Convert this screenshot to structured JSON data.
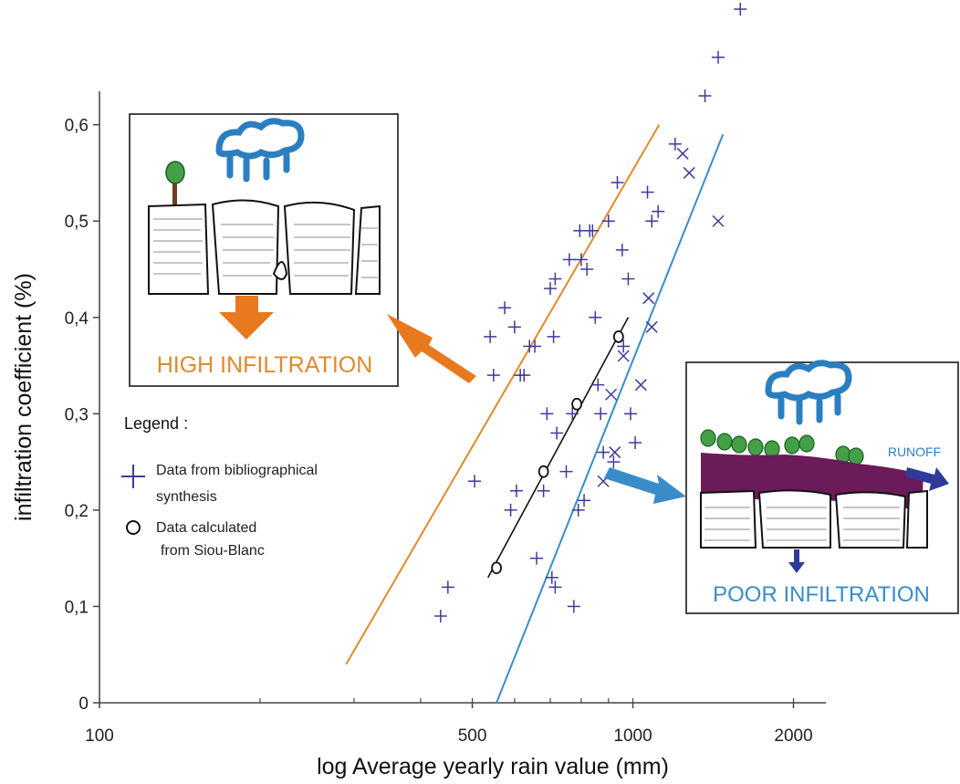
{
  "chart_data": {
    "type": "scatter",
    "xlabel": "log Average yearly rain value (mm)",
    "ylabel": "infiltration coefficient (%)",
    "xscale": "log",
    "xlim": [
      100,
      2300
    ],
    "ylim": [
      0,
      0.72
    ],
    "x_ticks": [
      100,
      500,
      1000,
      2000
    ],
    "x_tick_labels": [
      "100",
      "500",
      "1000",
      "2000"
    ],
    "y_ticks": [
      0,
      0.1,
      0.2,
      0.3,
      0.4,
      0.5,
      0.6
    ],
    "y_tick_labels": [
      "0",
      "0,1",
      "0,2",
      "0,3",
      "0,4",
      "0,5",
      "0,6"
    ],
    "legend": {
      "title": "Legend :",
      "placement": "left",
      "items": [
        {
          "marker": "plus",
          "color": "#3d3b9a",
          "line1": "Data from bibliographical",
          "line2": "synthesis"
        },
        {
          "marker": "circle",
          "color": "#111111",
          "line1": "Data calculated",
          "line2": "from Siou-Blanc"
        }
      ]
    },
    "series": [
      {
        "marker": "plus",
        "color": "#3d3b9a",
        "points": [
          [
            436,
            0.09
          ],
          [
            450,
            0.12
          ],
          [
            505,
            0.23
          ],
          [
            540,
            0.38
          ],
          [
            548,
            0.34
          ],
          [
            575,
            0.41
          ],
          [
            590,
            0.2
          ],
          [
            600,
            0.39
          ],
          [
            605,
            0.22
          ],
          [
            615,
            0.34
          ],
          [
            625,
            0.34
          ],
          [
            640,
            0.37
          ],
          [
            655,
            0.37
          ],
          [
            660,
            0.15
          ],
          [
            680,
            0.22
          ],
          [
            690,
            0.3
          ],
          [
            700,
            0.43
          ],
          [
            710,
            0.38
          ],
          [
            715,
            0.44
          ],
          [
            720,
            0.28
          ],
          [
            705,
            0.13
          ],
          [
            715,
            0.12
          ],
          [
            750,
            0.24
          ],
          [
            760,
            0.46
          ],
          [
            770,
            0.3
          ],
          [
            775,
            0.1
          ],
          [
            790,
            0.2
          ],
          [
            795,
            0.49
          ],
          [
            800,
            0.46
          ],
          [
            810,
            0.21
          ],
          [
            820,
            0.45
          ],
          [
            830,
            0.49
          ],
          [
            840,
            0.49
          ],
          [
            850,
            0.4
          ],
          [
            860,
            0.33
          ],
          [
            870,
            0.3
          ],
          [
            880,
            0.26
          ],
          [
            900,
            0.5
          ],
          [
            920,
            0.25
          ],
          [
            935,
            0.54
          ],
          [
            955,
            0.47
          ],
          [
            960,
            0.37
          ],
          [
            980,
            0.44
          ],
          [
            990,
            0.3
          ],
          [
            1010,
            0.27
          ],
          [
            1065,
            0.53
          ],
          [
            1085,
            0.5
          ],
          [
            1115,
            0.51
          ],
          [
            1200,
            0.58
          ],
          [
            1365,
            0.63
          ],
          [
            1445,
            0.67
          ],
          [
            1590,
            0.72
          ],
          [
            1700,
            0.75
          ]
        ]
      },
      {
        "marker": "cross",
        "color": "#3d3b9a",
        "points": [
          [
            880,
            0.23
          ],
          [
            910,
            0.32
          ],
          [
            925,
            0.26
          ],
          [
            960,
            0.36
          ],
          [
            1035,
            0.33
          ],
          [
            1070,
            0.42
          ],
          [
            1085,
            0.39
          ],
          [
            1240,
            0.57
          ],
          [
            1275,
            0.55
          ],
          [
            1445,
            0.5
          ]
        ]
      },
      {
        "marker": "circle",
        "color": "#111111",
        "points": [
          [
            555,
            0.14
          ],
          [
            680,
            0.24
          ],
          [
            785,
            0.31
          ],
          [
            940,
            0.38
          ]
        ]
      }
    ],
    "lines": [
      {
        "color": "#e08a2c",
        "from": [
          290,
          0.04
        ],
        "to": [
          1120,
          0.6
        ]
      },
      {
        "color": "#3a8cc8",
        "from": [
          555,
          0.0
        ],
        "to": [
          1475,
          0.59
        ]
      },
      {
        "color": "#111111",
        "from": [
          535,
          0.13
        ],
        "to": [
          980,
          0.4
        ]
      }
    ]
  },
  "insets": {
    "high": {
      "label": "HIGH INFILTRATION",
      "color": "#e08a2c"
    },
    "poor": {
      "label": "POOR INFILTRATION",
      "runoff": "RUNOFF",
      "color": "#3a8cc8"
    }
  },
  "colors": {
    "rock": "#ffffff",
    "soil": "#6b1a5a",
    "tree": "#43a047",
    "cloud": "#2b7fc1",
    "arrow_dark": "#2e3a9a"
  }
}
